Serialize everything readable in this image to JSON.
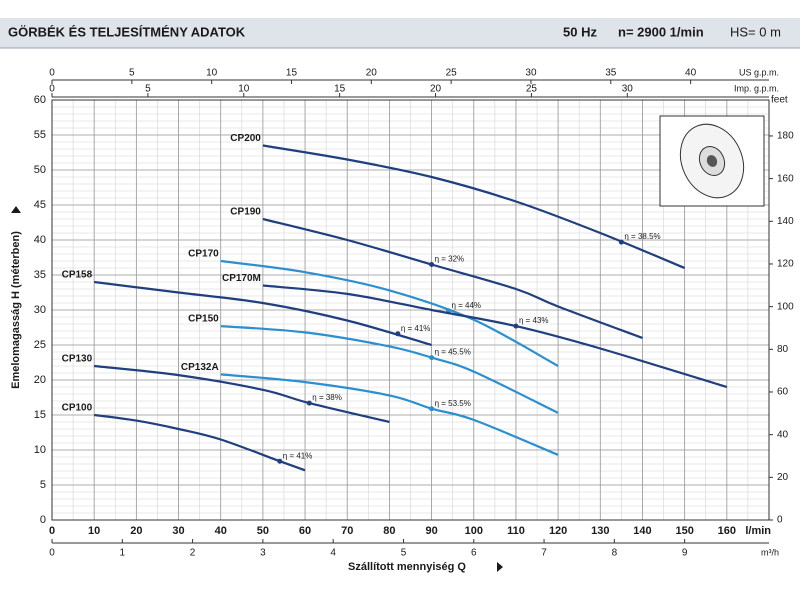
{
  "header": {
    "title": "GÖRBÉK ÉS TELJESÍTMÉNY ADATOK",
    "freq": "50 Hz",
    "speed": "n= 2900  1/min",
    "hs": "HS= 0 m"
  },
  "chart_data": {
    "type": "line",
    "xlabel": "Szállított mennyiség Q",
    "xunit": "l/min",
    "ylabel": "Emelomagasság  H  (méterben)",
    "xlim": [
      0,
      170
    ],
    "xticks": [
      0,
      10,
      20,
      30,
      40,
      50,
      60,
      70,
      80,
      90,
      100,
      110,
      120,
      130,
      140,
      150,
      160
    ],
    "ylim": [
      0,
      60
    ],
    "yticks": [
      0,
      5,
      10,
      15,
      20,
      25,
      30,
      35,
      40,
      45,
      50,
      55,
      60
    ],
    "y2label": "feet",
    "y2lim": [
      0,
      196.85
    ],
    "y2ticks": [
      0,
      20,
      40,
      60,
      80,
      100,
      120,
      140,
      160,
      180
    ],
    "top_axis_1": {
      "label": "US g.p.m.",
      "lim": [
        0,
        44.91
      ],
      "ticks": [
        0,
        5,
        10,
        15,
        20,
        25,
        30,
        35,
        40
      ]
    },
    "top_axis_2": {
      "label": "Imp. g.p.m.",
      "lim": [
        0,
        37.39
      ],
      "ticks": [
        0,
        5,
        10,
        15,
        20,
        25,
        30
      ]
    },
    "bottom_axis_2": {
      "label": "m³/h",
      "lim": [
        0,
        10.2
      ],
      "ticks": [
        0,
        1,
        2,
        3,
        4,
        5,
        6,
        7,
        8,
        9
      ]
    },
    "grid": true,
    "series": [
      {
        "name": "CP200",
        "color": "#1f3f7f",
        "x": [
          50,
          70,
          90,
          110,
          130,
          150
        ],
        "values": [
          53.5,
          51.5,
          49,
          45.5,
          41,
          36
        ],
        "eff": {
          "x": 135,
          "y": 39.7,
          "label": "η = 38.5%"
        }
      },
      {
        "name": "CP190",
        "color": "#1f3f7f",
        "x": [
          50,
          70,
          90,
          110,
          120,
          140
        ],
        "values": [
          43,
          40,
          36.5,
          33,
          30.5,
          26
        ],
        "eff": {
          "x": 90,
          "y": 36.5,
          "label": "η = 32%"
        }
      },
      {
        "name": "CP170",
        "color": "#2b8fd0",
        "x": [
          40,
          60,
          80,
          100,
          120
        ],
        "values": [
          37,
          35.4,
          32.8,
          28.6,
          22
        ],
        "eff": {
          "x": 94,
          "y": 29.9,
          "label": "η = 44%"
        }
      },
      {
        "name": "CP170M",
        "color": "#1f3f7f",
        "x": [
          50,
          70,
          90,
          110,
          130,
          160
        ],
        "values": [
          33.5,
          32.3,
          30,
          27.7,
          24.5,
          19
        ],
        "eff": {
          "x": 110,
          "y": 27.7,
          "label": "η = 43%"
        }
      },
      {
        "name": "CP158",
        "color": "#1f3f7f",
        "x": [
          10,
          30,
          50,
          70,
          90
        ],
        "values": [
          34,
          32.5,
          31,
          28.5,
          25
        ],
        "eff": {
          "x": 82,
          "y": 26.6,
          "label": "η = 41%"
        }
      },
      {
        "name": "CP150",
        "color": "#2b8fd0",
        "x": [
          40,
          60,
          80,
          90,
          100,
          120
        ],
        "values": [
          27.7,
          26.8,
          24.8,
          23.2,
          21.2,
          15.3
        ],
        "eff": {
          "x": 90,
          "y": 23.2,
          "label": "η = 45.5%"
        }
      },
      {
        "name": "CP132A",
        "color": "#2b8fd0",
        "x": [
          40,
          60,
          80,
          90,
          100,
          120
        ],
        "values": [
          20.8,
          19.7,
          17.8,
          15.9,
          14.3,
          9.3
        ],
        "eff": {
          "x": 90,
          "y": 15.9,
          "label": "η = 53.5%"
        }
      },
      {
        "name": "CP130",
        "color": "#1f3f7f",
        "x": [
          10,
          30,
          50,
          61,
          80
        ],
        "values": [
          22,
          20.7,
          18.6,
          16.7,
          14
        ],
        "eff": {
          "x": 61,
          "y": 16.7,
          "label": "η = 38%"
        }
      },
      {
        "name": "CP100",
        "color": "#1f3f7f",
        "x": [
          10,
          20,
          30,
          40,
          54,
          60
        ],
        "values": [
          15,
          14.2,
          13,
          11.5,
          8.4,
          7.1
        ],
        "eff": {
          "x": 54,
          "y": 8.4,
          "label": "η = 41%"
        }
      }
    ]
  }
}
